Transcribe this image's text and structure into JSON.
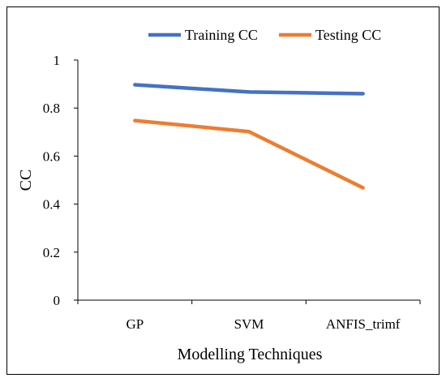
{
  "chart_data": {
    "type": "line",
    "title": "",
    "xlabel": "Modelling Techniques",
    "ylabel": "CC",
    "categories": [
      "GP",
      "SVM",
      "ANFIS_trimf"
    ],
    "ylim": [
      0,
      1
    ],
    "yticks": [
      0,
      0.2,
      0.4,
      0.6,
      0.8,
      1
    ],
    "ytick_labels": [
      "0",
      "0.2",
      "0.4",
      "0.6",
      "0.8",
      "1"
    ],
    "grid": false,
    "legend_position": "top",
    "series": [
      {
        "name": "Training CC",
        "color": "#4472C4",
        "values": [
          0.897,
          0.867,
          0.86
        ]
      },
      {
        "name": "Testing CC",
        "color": "#ED7D31",
        "values": [
          0.748,
          0.702,
          0.468
        ]
      }
    ]
  }
}
